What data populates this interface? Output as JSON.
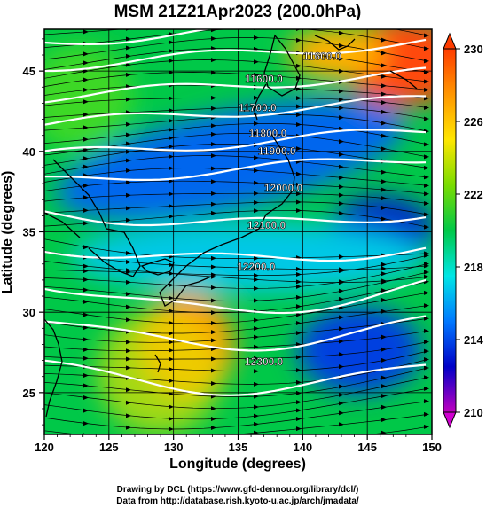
{
  "chart_data": {
    "type": "heatmap",
    "title": "MSM 21Z21Apr2023 (200.0hPa)",
    "xlabel": "Longitude (degrees)",
    "ylabel": "Latitude  (degrees)",
    "xlim": [
      120,
      150
    ],
    "ylim": [
      22.4,
      47.6
    ],
    "x_ticks": [
      "120",
      "125",
      "130",
      "135",
      "140",
      "145",
      "150"
    ],
    "y_ticks": [
      "25",
      "30",
      "35",
      "40",
      "45"
    ],
    "colorbar": {
      "range": [
        210,
        230
      ],
      "ticks": [
        "210",
        "214",
        "218",
        "222",
        "226",
        "230"
      ],
      "colors": [
        "#c000c0",
        "#0000c8",
        "#0078ff",
        "#00e6e6",
        "#00c848",
        "#7adc00",
        "#ffe600",
        "#ff9600",
        "#ff3c00"
      ]
    },
    "contour_labels": [
      {
        "text": "11600.0",
        "lon": 141.5,
        "lat": 45.7
      },
      {
        "text": "11600.0",
        "lon": 137.0,
        "lat": 44.3
      },
      {
        "text": "11700.0",
        "lon": 136.5,
        "lat": 42.5
      },
      {
        "text": "11800.0",
        "lon": 137.3,
        "lat": 40.9
      },
      {
        "text": "11900.0",
        "lon": 138.0,
        "lat": 39.8
      },
      {
        "text": "12000.0",
        "lon": 138.5,
        "lat": 37.5
      },
      {
        "text": "12100.0",
        "lon": 137.2,
        "lat": 35.2
      },
      {
        "text": "12200.0",
        "lon": 136.4,
        "lat": 32.6
      },
      {
        "text": "12300.0",
        "lon": 137.0,
        "lat": 26.7
      }
    ],
    "wind": "stream vectors, predominantly westerly",
    "grid": true
  },
  "footer": {
    "line1": "Drawing by DCL (https://www.gfd-dennou.org/library/dcl/)",
    "line2": "Data from http://database.rish.kyoto-u.ac.jp/arch/jmadata/"
  }
}
